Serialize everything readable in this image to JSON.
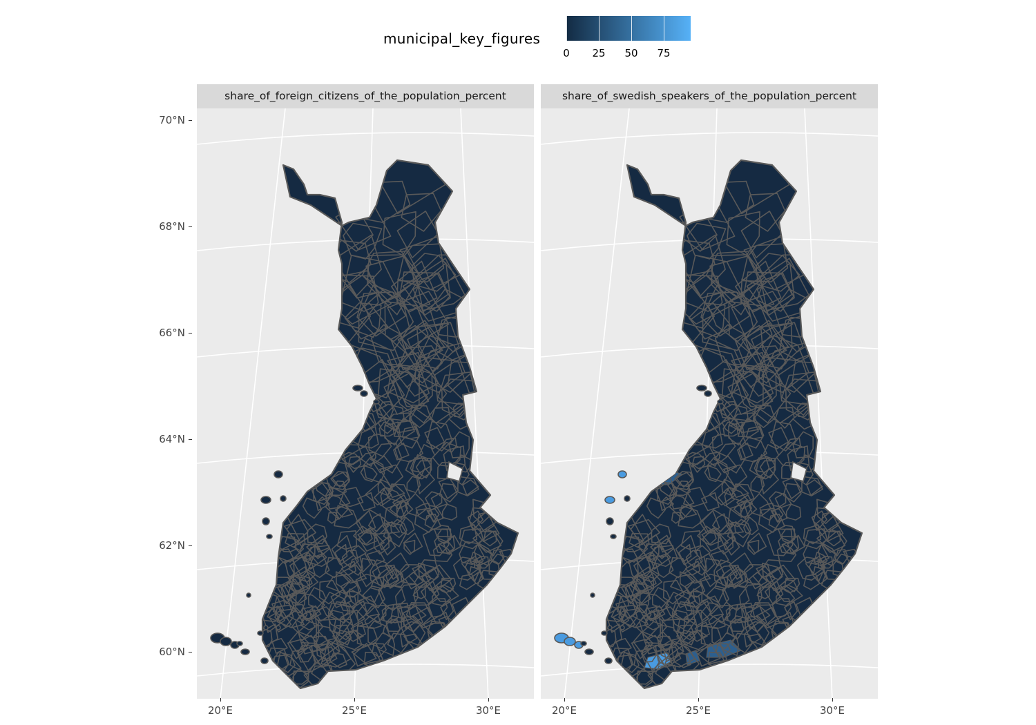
{
  "legend": {
    "title": "municipal_key_figures",
    "ticks": [
      {
        "label": "0",
        "value": 0
      },
      {
        "label": "25",
        "value": 25
      },
      {
        "label": "50",
        "value": 50
      },
      {
        "label": "75",
        "value": 75
      }
    ],
    "range": [
      0,
      95
    ],
    "low_color": "#132B43",
    "high_color": "#56B1F7"
  },
  "panels": [
    {
      "strip_label": "share_of_foreign_citizens_of_the_population_percent",
      "highlight": false
    },
    {
      "strip_label": "share_of_swedish_speakers_of_the_population_percent",
      "highlight": true
    }
  ],
  "axes": {
    "y_labels": [
      "70°N",
      "68°N",
      "66°N",
      "64°N",
      "62°N",
      "60°N"
    ],
    "x_labels": [
      "20°E",
      "25°E",
      "30°E"
    ]
  },
  "colors": {
    "panel_bg": "#ebebeb",
    "grid": "#ffffff",
    "land": "#152A42",
    "border": "#595959",
    "swedish_high": "#4A9BE0",
    "swedish_mid": "#2D5F8E"
  }
}
